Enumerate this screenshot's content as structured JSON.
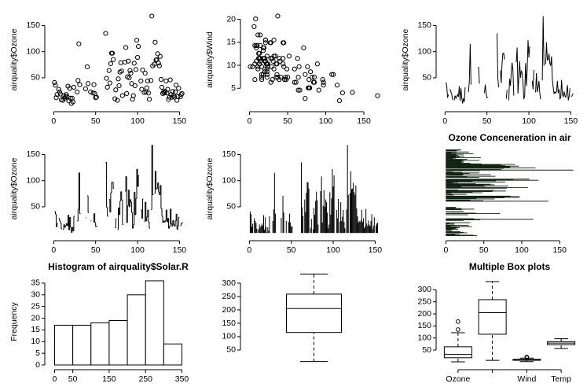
{
  "chart_data": [
    {
      "type": "scatter",
      "ylabel": "airquality$Ozone",
      "color": "#000000",
      "values": [
        41,
        36,
        12,
        18,
        null,
        28,
        23,
        19,
        8,
        null,
        7,
        16,
        11,
        14,
        18,
        14,
        34,
        6,
        30,
        11,
        1,
        11,
        4,
        32,
        null,
        null,
        null,
        23,
        45,
        115,
        37,
        null,
        null,
        null,
        null,
        null,
        null,
        29,
        null,
        71,
        39,
        null,
        null,
        23,
        null,
        null,
        21,
        37,
        20,
        12,
        13,
        null,
        null,
        null,
        null,
        null,
        null,
        null,
        null,
        null,
        null,
        135,
        49,
        32,
        null,
        64,
        40,
        77,
        97,
        97,
        85,
        null,
        10,
        27,
        null,
        7,
        48,
        35,
        61,
        79,
        63,
        16,
        null,
        null,
        80,
        108,
        20,
        52,
        82,
        50,
        64,
        59,
        39,
        9,
        16,
        78,
        35,
        66,
        122,
        89,
        110,
        null,
        null,
        44,
        28,
        65,
        null,
        22,
        59,
        23,
        31,
        44,
        21,
        9,
        null,
        45,
        168,
        73,
        null,
        76,
        118,
        84,
        85,
        96,
        78,
        73,
        91,
        47,
        32,
        20,
        23,
        21,
        24,
        44,
        21,
        28,
        9,
        13,
        46,
        18,
        13,
        24,
        16,
        13,
        23,
        36,
        7,
        14,
        30,
        null,
        14,
        18,
        20
      ],
      "xlim": [
        -5,
        159
      ],
      "ylim": [
        -5.7,
        174.7
      ],
      "xticks": [
        0,
        50,
        100,
        150
      ],
      "yticks": [
        50,
        100,
        150
      ]
    },
    {
      "type": "scatter",
      "ylabel": "airquality$Wind",
      "color": "#000000",
      "x": [
        41,
        36,
        12,
        18,
        null,
        28,
        23,
        19,
        8,
        null,
        7,
        16,
        11,
        14,
        18,
        14,
        34,
        6,
        30,
        11,
        1,
        11,
        4,
        32,
        null,
        null,
        null,
        23,
        45,
        115,
        37,
        null,
        null,
        null,
        null,
        null,
        null,
        29,
        null,
        71,
        39,
        null,
        null,
        23,
        null,
        null,
        21,
        37,
        20,
        12,
        13,
        null,
        null,
        null,
        null,
        null,
        null,
        null,
        null,
        null,
        null,
        135,
        49,
        32,
        null,
        64,
        40,
        77,
        97,
        97,
        85,
        null,
        10,
        27,
        null,
        7,
        48,
        35,
        61,
        79,
        63,
        16,
        null,
        null,
        80,
        108,
        20,
        52,
        82,
        50,
        64,
        59,
        39,
        9,
        16,
        78,
        35,
        66,
        122,
        89,
        110,
        null,
        null,
        44,
        28,
        65,
        null,
        22,
        59,
        23,
        31,
        44,
        21,
        9,
        null,
        45,
        168,
        73,
        null,
        76,
        118,
        84,
        85,
        96,
        78,
        73,
        91,
        47,
        32,
        20,
        23,
        21,
        24,
        44,
        21,
        28,
        9,
        13,
        46,
        18,
        13,
        24,
        16,
        13,
        23,
        36,
        7,
        14,
        30,
        null,
        14,
        18,
        20
      ],
      "values": [
        7.4,
        8.0,
        12.6,
        11.5,
        14.3,
        14.9,
        8.6,
        13.8,
        20.1,
        8.6,
        6.9,
        9.7,
        9.2,
        10.9,
        13.2,
        11.5,
        12.0,
        18.4,
        11.5,
        9.7,
        9.7,
        16.6,
        9.7,
        12.0,
        16.6,
        14.9,
        8.0,
        12.0,
        14.9,
        5.7,
        7.4,
        8.6,
        9.7,
        16.1,
        9.2,
        8.6,
        14.3,
        9.7,
        6.9,
        13.8,
        11.5,
        10.9,
        9.2,
        8.0,
        13.8,
        11.5,
        14.9,
        20.7,
        9.2,
        11.5,
        10.3,
        6.3,
        1.7,
        4.6,
        6.3,
        8.0,
        8.0,
        10.3,
        11.5,
        14.9,
        8.0,
        4.1,
        9.2,
        9.2,
        10.9,
        4.6,
        10.9,
        5.1,
        6.3,
        5.7,
        7.4,
        8.6,
        14.3,
        14.9,
        14.9,
        14.3,
        6.9,
        10.3,
        6.3,
        5.1,
        11.5,
        6.9,
        9.7,
        11.5,
        8.6,
        8.0,
        8.6,
        12.0,
        7.4,
        7.4,
        7.4,
        9.2,
        6.9,
        13.8,
        7.4,
        6.9,
        7.4,
        4.6,
        4.0,
        10.3,
        8.0,
        8.6,
        11.5,
        11.5,
        11.5,
        9.7,
        11.5,
        10.3,
        6.3,
        7.4,
        10.9,
        10.3,
        15.5,
        14.3,
        12.6,
        9.7,
        3.4,
        8.0,
        5.7,
        9.7,
        2.3,
        6.3,
        6.3,
        6.9,
        5.1,
        2.8,
        4.6,
        7.4,
        15.5,
        10.9,
        10.3,
        10.9,
        9.7,
        14.9,
        15.5,
        6.3,
        10.9,
        11.5,
        6.9,
        13.8,
        10.3,
        10.3,
        8.0,
        12.6,
        9.2,
        10.3,
        10.3,
        16.6,
        6.9,
        13.2,
        14.3,
        8.0,
        11.5
      ],
      "xlim": [
        -5.7,
        174.7
      ],
      "ylim": [
        0.94,
        21.46
      ],
      "xticks": [
        0,
        50,
        100,
        150
      ],
      "yticks": [
        5,
        10,
        15,
        20
      ]
    },
    {
      "type": "line",
      "ylabel": "airquality$Ozone",
      "color": "#000000",
      "values": [
        41,
        36,
        12,
        18,
        null,
        28,
        23,
        19,
        8,
        null,
        7,
        16,
        11,
        14,
        18,
        14,
        34,
        6,
        30,
        11,
        1,
        11,
        4,
        32,
        null,
        null,
        null,
        23,
        45,
        115,
        37,
        null,
        null,
        null,
        null,
        null,
        null,
        29,
        null,
        71,
        39,
        null,
        null,
        23,
        null,
        null,
        21,
        37,
        20,
        12,
        13,
        null,
        null,
        null,
        null,
        null,
        null,
        null,
        null,
        null,
        null,
        135,
        49,
        32,
        null,
        64,
        40,
        77,
        97,
        97,
        85,
        null,
        10,
        27,
        null,
        7,
        48,
        35,
        61,
        79,
        63,
        16,
        null,
        null,
        80,
        108,
        20,
        52,
        82,
        50,
        64,
        59,
        39,
        9,
        16,
        78,
        35,
        66,
        122,
        89,
        110,
        null,
        null,
        44,
        28,
        65,
        null,
        22,
        59,
        23,
        31,
        44,
        21,
        9,
        null,
        45,
        168,
        73,
        null,
        76,
        118,
        84,
        85,
        96,
        78,
        73,
        91,
        47,
        32,
        20,
        23,
        21,
        24,
        44,
        21,
        28,
        9,
        13,
        46,
        18,
        13,
        24,
        16,
        13,
        23,
        36,
        7,
        14,
        30,
        null,
        14,
        18,
        20
      ],
      "xlim": [
        -5,
        159
      ],
      "ylim": [
        -5.7,
        174.7
      ],
      "xticks": [
        0,
        50,
        100,
        150
      ],
      "yticks": [
        50,
        100,
        150
      ]
    },
    {
      "type": "step",
      "ylabel": "airquality$Ozone",
      "color": "#000000",
      "values": [
        41,
        36,
        12,
        18,
        null,
        28,
        23,
        19,
        8,
        null,
        7,
        16,
        11,
        14,
        18,
        14,
        34,
        6,
        30,
        11,
        1,
        11,
        4,
        32,
        null,
        null,
        null,
        23,
        45,
        115,
        37,
        null,
        null,
        null,
        null,
        null,
        null,
        29,
        null,
        71,
        39,
        null,
        null,
        23,
        null,
        null,
        21,
        37,
        20,
        12,
        13,
        null,
        null,
        null,
        null,
        null,
        null,
        null,
        null,
        null,
        null,
        135,
        49,
        32,
        null,
        64,
        40,
        77,
        97,
        97,
        85,
        null,
        10,
        27,
        null,
        7,
        48,
        35,
        61,
        79,
        63,
        16,
        null,
        null,
        80,
        108,
        20,
        52,
        82,
        50,
        64,
        59,
        39,
        9,
        16,
        78,
        35,
        66,
        122,
        89,
        110,
        null,
        null,
        44,
        28,
        65,
        null,
        22,
        59,
        23,
        31,
        44,
        21,
        9,
        null,
        45,
        168,
        73,
        null,
        76,
        118,
        84,
        85,
        96,
        78,
        73,
        91,
        47,
        32,
        20,
        23,
        21,
        24,
        44,
        21,
        28,
        9,
        13,
        46,
        18,
        13,
        24,
        16,
        13,
        23,
        36,
        7,
        14,
        30,
        null,
        14,
        18,
        20
      ],
      "xlim": [
        -5,
        159
      ],
      "ylim": [
        -5.7,
        174.7
      ],
      "xticks": [
        0,
        50,
        100,
        150
      ],
      "yticks": [
        50,
        100,
        150
      ]
    },
    {
      "type": "spike",
      "ylabel": "airquality$Ozone",
      "color": "#3a3a3a",
      "values": [
        41,
        36,
        12,
        18,
        null,
        28,
        23,
        19,
        8,
        null,
        7,
        16,
        11,
        14,
        18,
        14,
        34,
        6,
        30,
        11,
        1,
        11,
        4,
        32,
        null,
        null,
        null,
        23,
        45,
        115,
        37,
        null,
        null,
        null,
        null,
        null,
        null,
        29,
        null,
        71,
        39,
        null,
        null,
        23,
        null,
        null,
        21,
        37,
        20,
        12,
        13,
        null,
        null,
        null,
        null,
        null,
        null,
        null,
        null,
        null,
        null,
        135,
        49,
        32,
        null,
        64,
        40,
        77,
        97,
        97,
        85,
        null,
        10,
        27,
        null,
        7,
        48,
        35,
        61,
        79,
        63,
        16,
        null,
        null,
        80,
        108,
        20,
        52,
        82,
        50,
        64,
        59,
        39,
        9,
        16,
        78,
        35,
        66,
        122,
        89,
        110,
        null,
        null,
        44,
        28,
        65,
        null,
        22,
        59,
        23,
        31,
        44,
        21,
        9,
        null,
        45,
        168,
        73,
        null,
        76,
        118,
        84,
        85,
        96,
        78,
        73,
        91,
        47,
        32,
        20,
        23,
        21,
        24,
        44,
        21,
        28,
        9,
        13,
        46,
        18,
        13,
        24,
        16,
        13,
        23,
        36,
        7,
        14,
        30,
        null,
        14,
        18,
        20
      ],
      "xlim": [
        -5,
        159
      ],
      "ylim": [
        -5.7,
        174.7
      ],
      "xticks": [
        0,
        50,
        100,
        150
      ],
      "yticks": [
        50,
        100,
        150
      ]
    },
    {
      "type": "barh",
      "title": "Ozone Conceneration in air",
      "color": "#061806",
      "values": [
        41,
        36,
        12,
        18,
        null,
        28,
        23,
        19,
        8,
        null,
        7,
        16,
        11,
        14,
        18,
        14,
        34,
        6,
        30,
        11,
        1,
        11,
        4,
        32,
        null,
        null,
        null,
        23,
        45,
        115,
        37,
        null,
        null,
        null,
        null,
        null,
        null,
        29,
        null,
        71,
        39,
        null,
        null,
        23,
        null,
        null,
        21,
        37,
        20,
        12,
        13,
        null,
        null,
        null,
        null,
        null,
        null,
        null,
        null,
        null,
        null,
        135,
        49,
        32,
        null,
        64,
        40,
        77,
        97,
        97,
        85,
        null,
        10,
        27,
        null,
        7,
        48,
        35,
        61,
        79,
        63,
        16,
        null,
        null,
        80,
        108,
        20,
        52,
        82,
        50,
        64,
        59,
        39,
        9,
        16,
        78,
        35,
        66,
        122,
        89,
        110,
        null,
        null,
        44,
        28,
        65,
        null,
        22,
        59,
        23,
        31,
        44,
        21,
        9,
        null,
        45,
        168,
        73,
        null,
        76,
        118,
        84,
        85,
        96,
        78,
        73,
        91,
        47,
        32,
        20,
        23,
        21,
        24,
        44,
        21,
        28,
        9,
        13,
        46,
        18,
        13,
        24,
        16,
        13,
        23,
        36,
        7,
        14,
        30,
        null,
        14,
        18,
        20
      ],
      "xlim": [
        -6.7,
        174.7
      ],
      "xticks": [
        0,
        50,
        100,
        150
      ]
    },
    {
      "type": "histogram",
      "title": "Histogram of airquality$Solar.R",
      "ylabel": "Frequency",
      "color": "#ffffff",
      "bins": [
        0,
        50,
        100,
        150,
        200,
        250,
        300,
        350
      ],
      "values": [
        17,
        17,
        18,
        19,
        30,
        36,
        9
      ],
      "xlim": [
        -14,
        364
      ],
      "ylim": [
        0,
        37
      ],
      "xticks": [
        0,
        50,
        150,
        250,
        350
      ],
      "yticks": [
        0,
        5,
        10,
        15,
        20,
        25,
        30,
        35
      ]
    },
    {
      "type": "box",
      "color": "#ffffff",
      "boxes": [
        {
          "stats": [
            7,
            115.5,
            205,
            259,
            334
          ],
          "outliers": []
        }
      ],
      "xlim": [
        0.5,
        1.5
      ],
      "ylim": [
        -6,
        347
      ],
      "yticks": [
        50,
        100,
        150,
        200,
        250,
        300
      ]
    },
    {
      "type": "box",
      "title": "Multiple Box plots",
      "color": "#ffffff",
      "categories": [
        "Ozone",
        null,
        "Wind",
        "Temp"
      ],
      "boxes": [
        {
          "stats": [
            1,
            18,
            31.5,
            63.5,
            122
          ],
          "outliers": [
            135,
            168
          ]
        },
        {
          "stats": [
            7,
            115.5,
            205,
            259,
            334
          ],
          "outliers": []
        },
        {
          "stats": [
            1.7,
            7.4,
            9.7,
            11.5,
            16.6
          ],
          "outliers": [
            18.4,
            20.1,
            20.7
          ]
        },
        {
          "stats": [
            56,
            72,
            79,
            85,
            97
          ],
          "outliers": []
        }
      ],
      "xlim": [
        0.5,
        4.5
      ],
      "ylim": [
        -12,
        347
      ],
      "yticks": [
        50,
        100,
        150,
        200,
        250,
        300
      ]
    }
  ]
}
